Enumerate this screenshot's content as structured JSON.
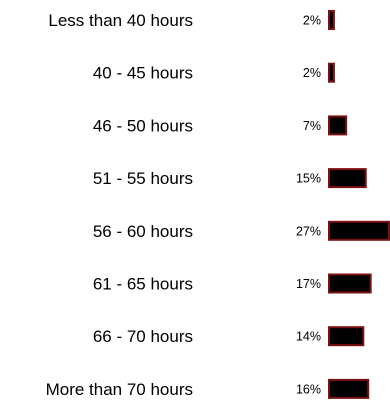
{
  "chart_data": {
    "type": "bar",
    "orientation": "horizontal",
    "categories": [
      "Less than 40 hours",
      "40 - 45 hours",
      "46 - 50 hours",
      "51 - 55 hours",
      "56 - 60 hours",
      "61 - 65 hours",
      "66 - 70 hours",
      "More than 70 hours"
    ],
    "values": [
      2,
      2,
      7,
      15,
      27,
      17,
      14,
      16
    ],
    "value_labels": [
      "2%",
      "2%",
      "7%",
      "15%",
      "27%",
      "17%",
      "14%",
      "16%"
    ],
    "unit": "%",
    "colors": {
      "bar_fill": "#000000",
      "bar_stroke": "#7a1010"
    },
    "grid": false,
    "legend": "none"
  }
}
